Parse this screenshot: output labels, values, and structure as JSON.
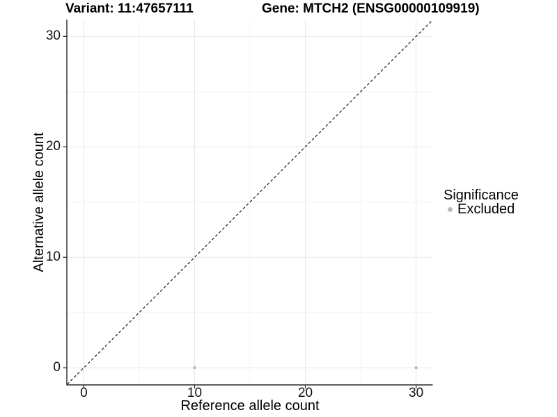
{
  "titles": {
    "variant": "Variant: 11:47657111",
    "gene": "Gene: MTCH2 (ENSG00000109919)"
  },
  "chart_data": {
    "type": "scatter",
    "xlabel": "Reference allele count",
    "ylabel": "Alternative allele count",
    "xlim": [
      -1.5,
      31.5
    ],
    "ylim": [
      -1.5,
      31.5
    ],
    "x_ticks": [
      0,
      10,
      20,
      30
    ],
    "y_ticks": [
      0,
      10,
      20,
      30
    ],
    "x_minor_ticks": [
      5,
      15,
      25
    ],
    "y_minor_ticks": [
      5,
      15,
      25
    ],
    "grid": "major+minor",
    "points": [
      {
        "x": 10,
        "y": 0
      },
      {
        "x": 30,
        "y": 0
      }
    ],
    "identity_line": {
      "from": [
        -1.5,
        -1.5
      ],
      "to": [
        31.5,
        31.5
      ],
      "style": "dashed"
    },
    "legend": {
      "title": "Significance",
      "position": "right",
      "items": [
        {
          "label": "Excluded",
          "color": "#b9b9b9"
        }
      ]
    },
    "colors": {
      "point": "#b9b9b9",
      "grid_major": "#e8e8e8",
      "grid_minor": "#f4f4f4",
      "axis_line": "#333333",
      "dashed_line": "#1a1a1a"
    }
  }
}
